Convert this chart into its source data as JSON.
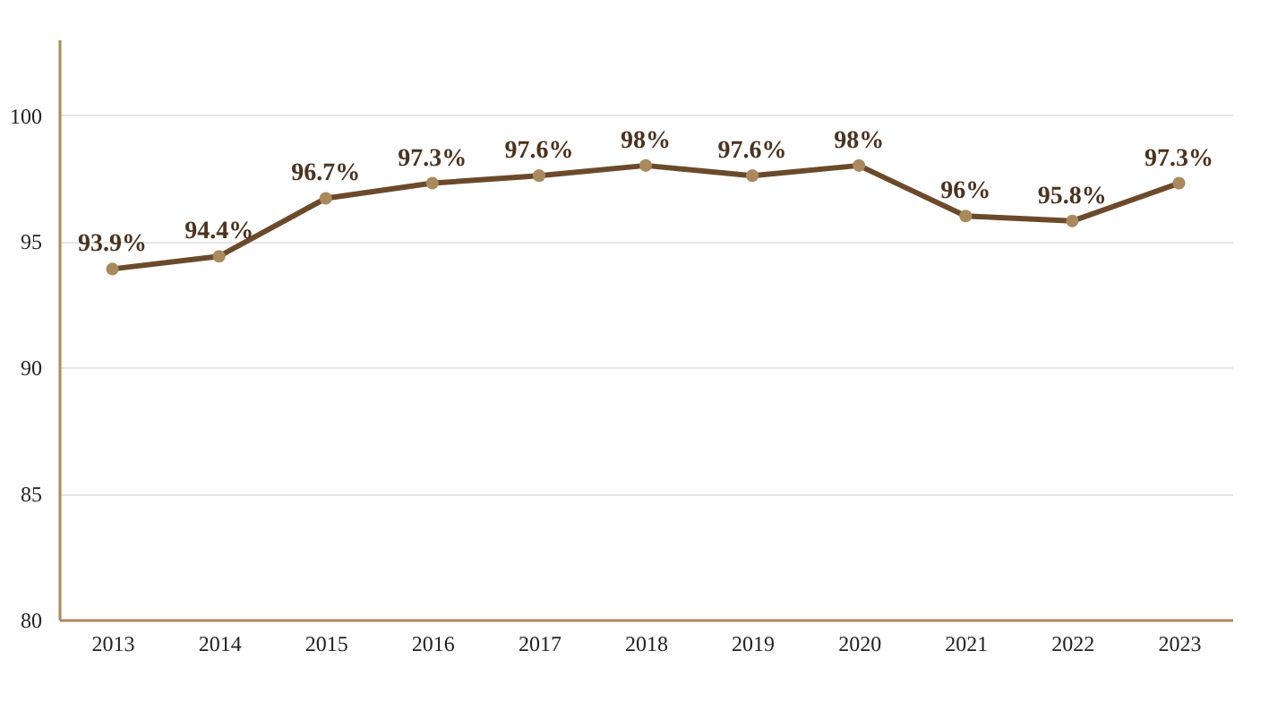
{
  "chart_data": {
    "type": "line",
    "categories": [
      "2013",
      "2014",
      "2015",
      "2016",
      "2017",
      "2018",
      "2019",
      "2020",
      "2021",
      "2022",
      "2023"
    ],
    "series": [
      {
        "color": "#6b4a2b",
        "values": [
          93.9,
          94.4,
          96.7,
          97.3,
          97.6,
          98,
          97.6,
          98,
          96,
          95.8,
          97.3
        ],
        "value_labels": [
          "93.9%",
          "94.4%",
          "96.7%",
          "97.3%",
          "97.6%",
          "98%",
          "97.6%",
          "98%",
          "96%",
          "95.8%",
          "97.3%"
        ]
      }
    ],
    "ylim": [
      80,
      103
    ],
    "yticks": [
      80,
      85,
      90,
      95,
      100
    ],
    "grid": "y",
    "marker": "circle",
    "line_style": "solid",
    "legend": false
  }
}
